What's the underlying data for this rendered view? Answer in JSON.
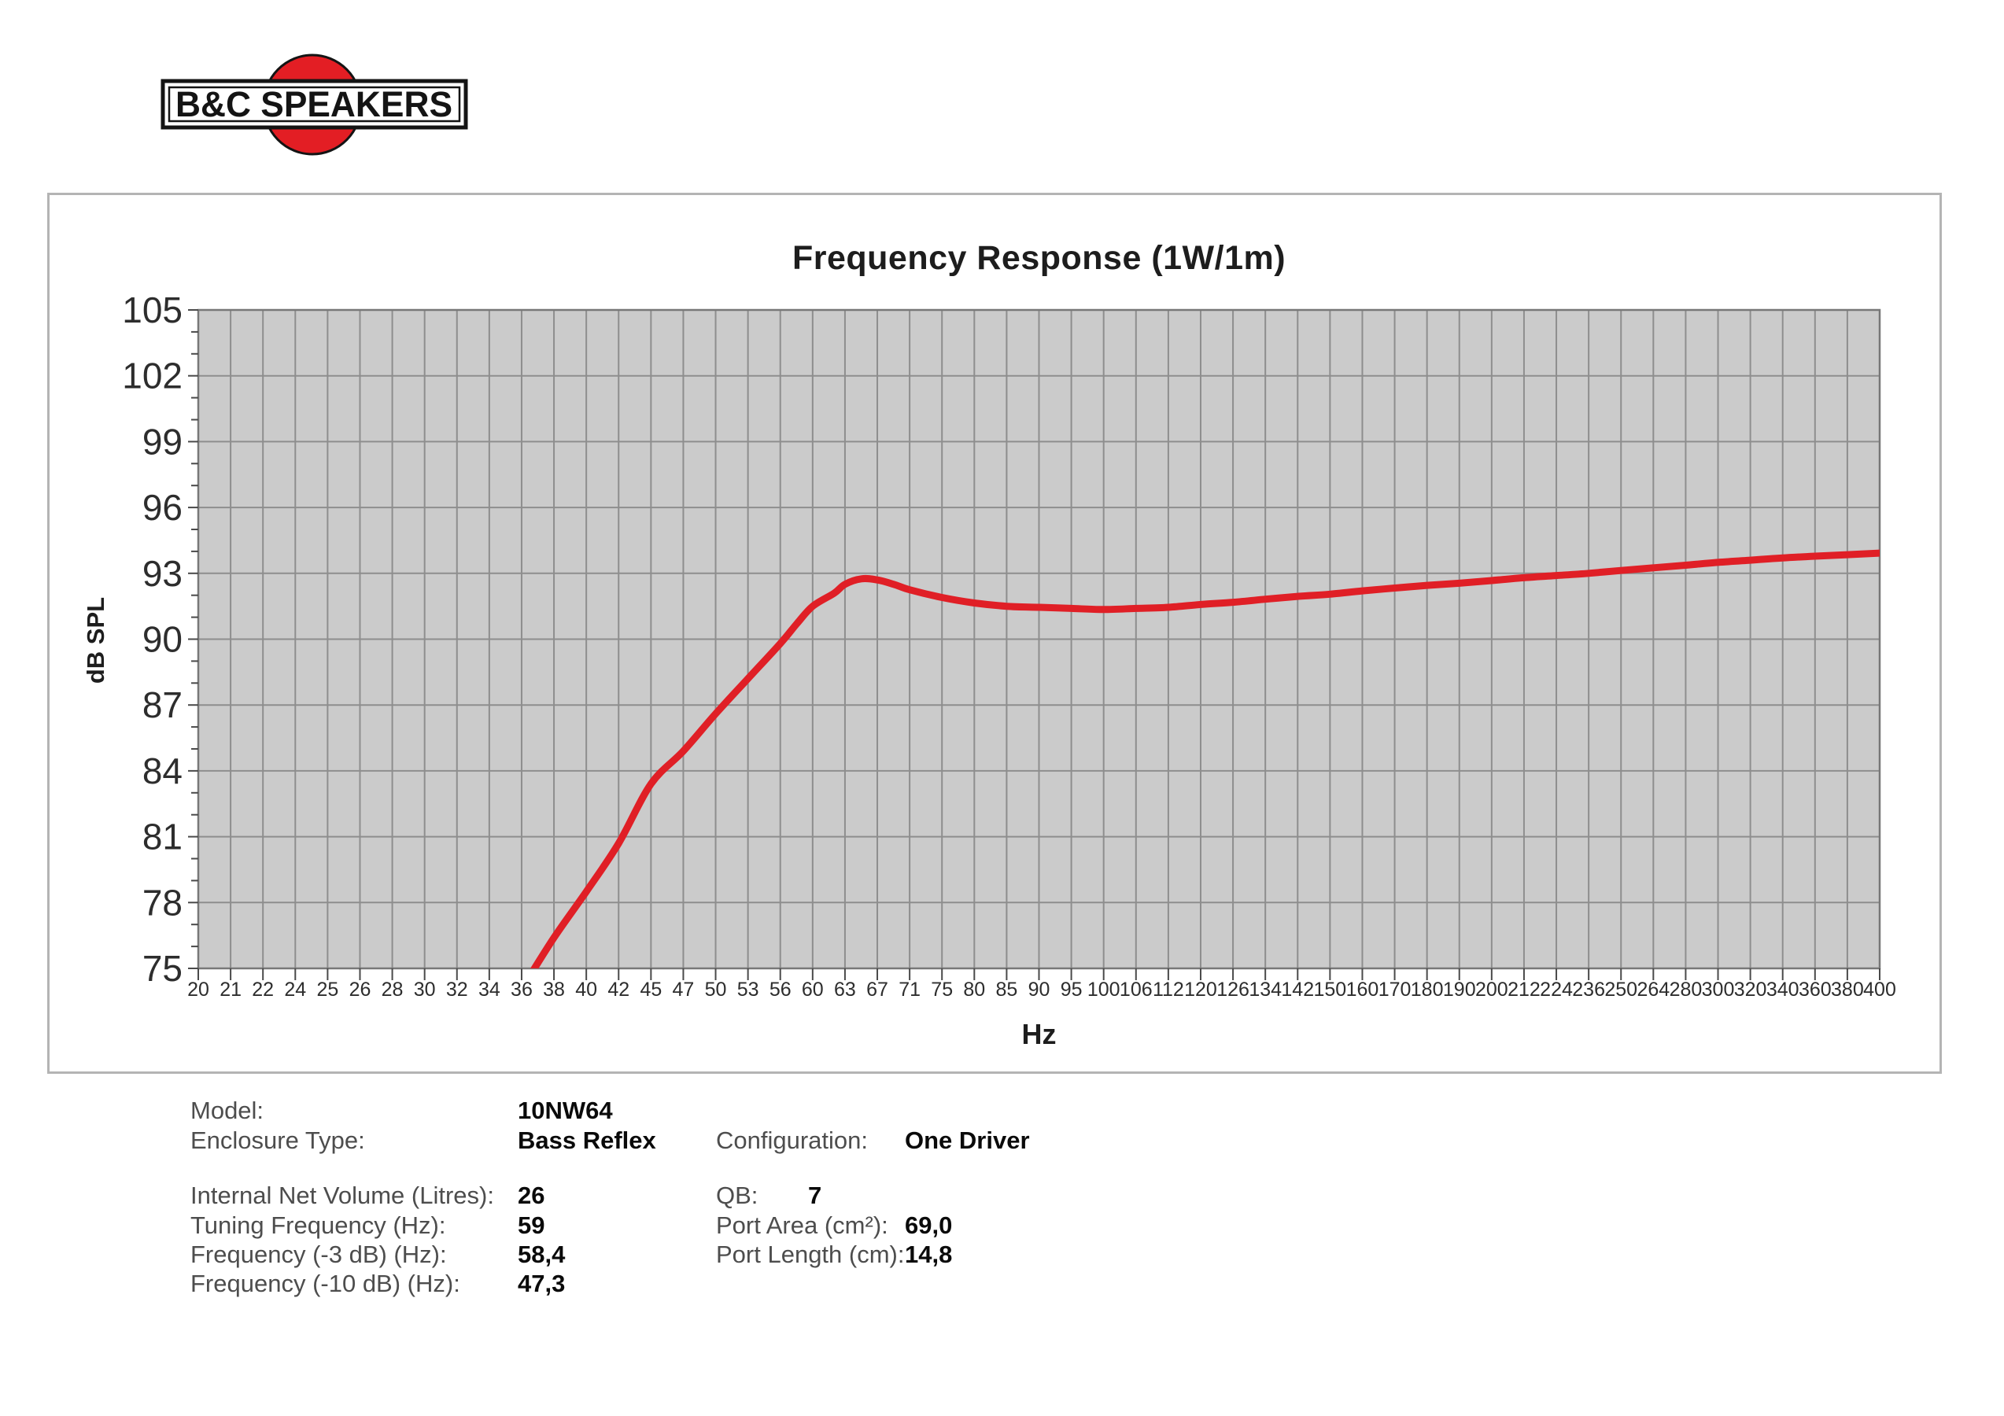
{
  "logo": {
    "text": "B&C SPEAKERS"
  },
  "chart": {
    "title": "Frequency Response (1W/1m)",
    "y_axis_label": "dB SPL",
    "x_axis_label": "Hz"
  },
  "chart_data": {
    "type": "line",
    "title": "Frequency Response (1W/1m)",
    "xlabel": "Hz",
    "ylabel": "dB SPL",
    "x_scale": "log",
    "grid": true,
    "legend": "none",
    "ylim": [
      75,
      105
    ],
    "y_ticks": [
      105,
      102,
      99,
      96,
      93,
      90,
      87,
      84,
      81,
      78,
      75
    ],
    "x_ticks": [
      20,
      21,
      22,
      24,
      25,
      26,
      28,
      30,
      32,
      34,
      36,
      38,
      40,
      42,
      45,
      47,
      50,
      53,
      56,
      60,
      63,
      67,
      71,
      75,
      80,
      85,
      90,
      95,
      100,
      106,
      112,
      120,
      126,
      134,
      142,
      150,
      160,
      170,
      180,
      190,
      200,
      212,
      224,
      236,
      250,
      264,
      280,
      300,
      320,
      340,
      360,
      380,
      400
    ],
    "colors": {
      "curve": "#e01f26",
      "plot_background": "#cbcbcb",
      "gridline": "#8e8e8e",
      "plot_border": "#787878",
      "tick": "#4a4a4a",
      "axis_text": "#2d2d2d"
    },
    "series": [
      {
        "name": "SPL (1W/1m)",
        "color": "#e01f26",
        "points": [
          [
            36.2,
            74.3
          ],
          [
            38,
            76.4
          ],
          [
            40,
            78.5
          ],
          [
            42,
            80.7
          ],
          [
            45,
            83.4
          ],
          [
            47,
            84.9
          ],
          [
            50,
            86.6
          ],
          [
            53,
            88.2
          ],
          [
            56,
            89.8
          ],
          [
            58,
            90.7
          ],
          [
            60,
            91.5
          ],
          [
            62,
            92.1
          ],
          [
            63,
            92.5
          ],
          [
            65,
            92.75
          ],
          [
            67,
            92.7
          ],
          [
            69,
            92.5
          ],
          [
            71,
            92.25
          ],
          [
            75,
            91.9
          ],
          [
            80,
            91.65
          ],
          [
            85,
            91.5
          ],
          [
            90,
            91.45
          ],
          [
            95,
            91.4
          ],
          [
            100,
            91.35
          ],
          [
            106,
            91.4
          ],
          [
            112,
            91.45
          ],
          [
            120,
            91.58
          ],
          [
            126,
            91.68
          ],
          [
            134,
            91.82
          ],
          [
            142,
            91.95
          ],
          [
            150,
            92.05
          ],
          [
            160,
            92.2
          ],
          [
            170,
            92.33
          ],
          [
            180,
            92.45
          ],
          [
            190,
            92.55
          ],
          [
            200,
            92.67
          ],
          [
            212,
            92.8
          ],
          [
            224,
            92.9
          ],
          [
            236,
            93.0
          ],
          [
            250,
            93.13
          ],
          [
            264,
            93.25
          ],
          [
            280,
            93.37
          ],
          [
            300,
            93.5
          ],
          [
            320,
            93.6
          ],
          [
            340,
            93.7
          ],
          [
            360,
            93.78
          ],
          [
            380,
            93.85
          ],
          [
            400,
            93.92
          ]
        ]
      }
    ]
  },
  "info": {
    "model_label": "Model:",
    "model_value": "10NW64",
    "enclosure_label": "Enclosure Type:",
    "enclosure_value": "Bass Reflex",
    "configuration_label": "Configuration:",
    "configuration_value": "One Driver",
    "volume_label": "Internal Net Volume (Litres):",
    "volume_value": "26",
    "qb_label": "QB:",
    "qb_value": "7",
    "tuning_label": "Tuning Frequency (Hz):",
    "tuning_value": "59",
    "port_area_label": "Port Area (cm²):",
    "port_area_value": "69,0",
    "f3_label": "Frequency (-3 dB) (Hz):",
    "f3_value": "58,4",
    "port_length_label": "Port Length (cm):",
    "port_length_value": "14,8",
    "f10_label": "Frequency (-10 dB) (Hz):",
    "f10_value": "47,3"
  },
  "logo_colors": {
    "red": "#e31e24",
    "black": "#141414"
  }
}
